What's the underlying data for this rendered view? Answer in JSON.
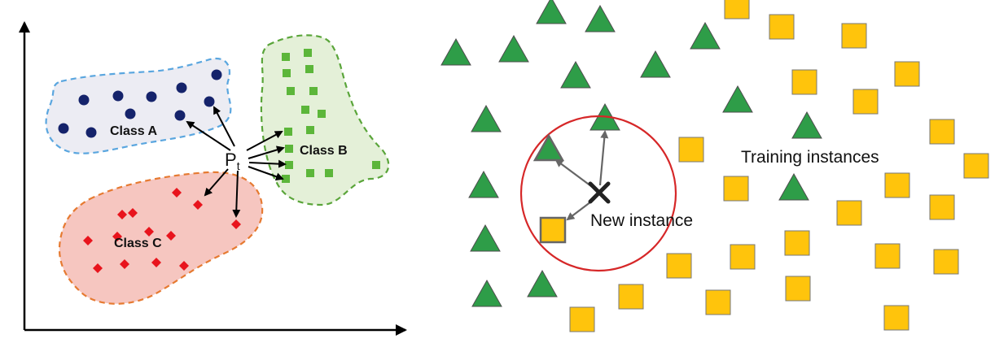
{
  "left_panel": {
    "class_a_label": "Class A",
    "class_b_label": "Class B",
    "class_c_label": "Class C",
    "query_point_label": "P",
    "query_point_subscript": "t",
    "colors": {
      "class_a_fill": "#ececf3",
      "class_a_border": "#5aa6df",
      "class_a_points": "#15236b",
      "class_b_fill": "#e4f0d8",
      "class_b_border": "#5aa53a",
      "class_b_points": "#5cb63a",
      "class_c_fill": "#f6c6c0",
      "class_c_border": "#e67a31",
      "class_c_points": "#e8141d"
    }
  },
  "right_panel": {
    "training_label": "Training instances",
    "new_instance_label": "New instance",
    "colors": {
      "triangle": "#2e9d48",
      "square": "#ffc40c",
      "circle": "#d62728",
      "cross": "#222222"
    }
  }
}
